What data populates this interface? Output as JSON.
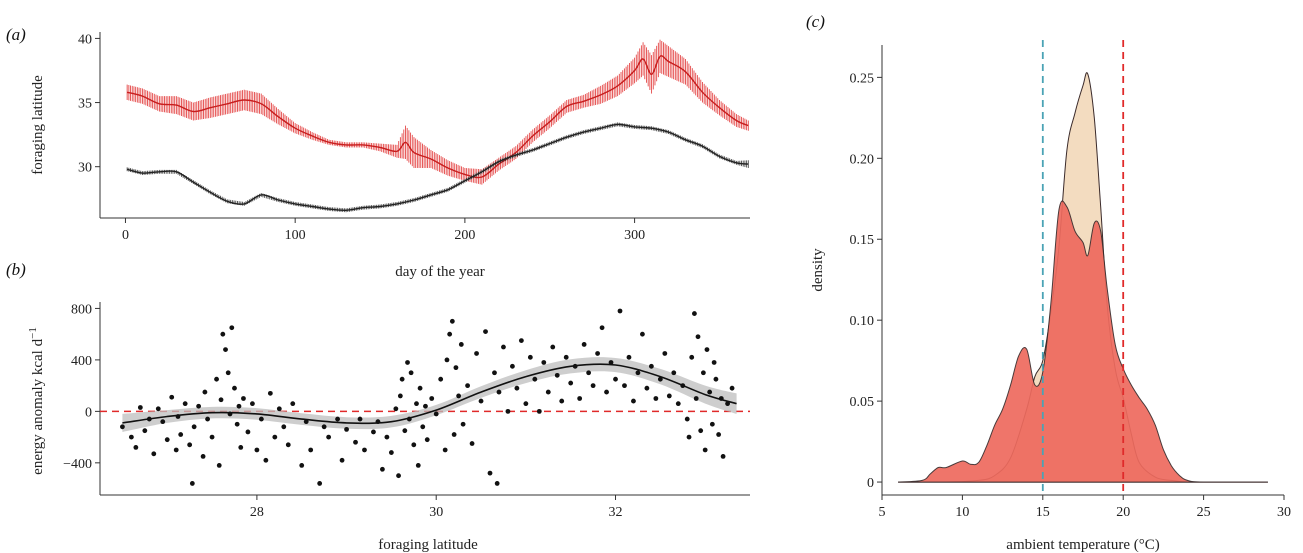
{
  "chart_data": [
    {
      "panel_label": "(a)",
      "type": "line",
      "xlabel": "day of the year",
      "ylabel": "foraging latitude",
      "xlim": [
        -15,
        368
      ],
      "ylim": [
        26,
        40.5
      ],
      "xticks": [
        0,
        100,
        200,
        300
      ],
      "yticks": [
        30,
        35,
        40
      ],
      "error_bars": true,
      "series": [
        {
          "color": "#e02a2a",
          "x": [
            1,
            10,
            20,
            30,
            40,
            50,
            60,
            70,
            80,
            90,
            100,
            110,
            120,
            130,
            140,
            150,
            160,
            165,
            170,
            180,
            190,
            200,
            210,
            220,
            230,
            240,
            250,
            260,
            270,
            280,
            290,
            300,
            305,
            310,
            315,
            320,
            330,
            340,
            350,
            360,
            367
          ],
          "y": [
            35.8,
            35.5,
            34.9,
            34.8,
            34.3,
            34.6,
            34.9,
            35.2,
            34.9,
            33.9,
            33.0,
            32.4,
            31.9,
            31.7,
            31.7,
            31.5,
            31.2,
            31.9,
            31.1,
            30.6,
            29.9,
            29.4,
            29.2,
            30.2,
            31.1,
            32.4,
            33.5,
            34.7,
            35.1,
            35.6,
            36.3,
            37.5,
            38.4,
            37.2,
            38.6,
            38.2,
            37.4,
            35.8,
            34.6,
            33.6,
            33.2
          ],
          "err": [
            0.6,
            0.6,
            0.6,
            0.7,
            0.7,
            0.8,
            0.8,
            0.8,
            0.8,
            0.6,
            0.4,
            0.3,
            0.2,
            0.2,
            0.2,
            0.3,
            0.5,
            1.3,
            1.2,
            0.7,
            0.6,
            0.5,
            0.6,
            0.5,
            0.5,
            0.5,
            0.5,
            0.5,
            0.5,
            0.7,
            0.8,
            1.0,
            1.3,
            1.5,
            1.3,
            1.2,
            1.0,
            0.8,
            0.6,
            0.5,
            0.4
          ]
        },
        {
          "color": "#2b2b2b",
          "x": [
            1,
            10,
            20,
            30,
            40,
            50,
            60,
            70,
            80,
            90,
            100,
            110,
            120,
            130,
            140,
            150,
            160,
            170,
            180,
            190,
            200,
            210,
            220,
            230,
            240,
            250,
            260,
            270,
            280,
            290,
            300,
            310,
            320,
            330,
            340,
            350,
            360,
            367
          ],
          "y": [
            29.8,
            29.5,
            29.6,
            29.6,
            28.8,
            28.0,
            27.3,
            27.1,
            27.8,
            27.4,
            27.1,
            26.9,
            26.7,
            26.6,
            26.8,
            26.9,
            27.1,
            27.4,
            27.8,
            28.2,
            28.9,
            29.6,
            30.4,
            30.9,
            31.3,
            31.8,
            32.3,
            32.7,
            33.0,
            33.3,
            33.1,
            33.0,
            32.7,
            32.1,
            31.6,
            30.8,
            30.3,
            30.2
          ],
          "err": [
            0.15,
            0.15,
            0.15,
            0.15,
            0.15,
            0.15,
            0.15,
            0.15,
            0.15,
            0.15,
            0.15,
            0.15,
            0.15,
            0.15,
            0.15,
            0.15,
            0.15,
            0.15,
            0.15,
            0.15,
            0.15,
            0.15,
            0.15,
            0.15,
            0.15,
            0.15,
            0.15,
            0.15,
            0.15,
            0.15,
            0.15,
            0.15,
            0.15,
            0.15,
            0.15,
            0.15,
            0.15,
            0.3
          ]
        }
      ]
    },
    {
      "panel_label": "(b)",
      "type": "scatter",
      "xlabel": "foraging latitude",
      "ylabel": "energy anomaly kcal d",
      "ylabel_superscript": "−1",
      "xlim": [
        26.25,
        33.5
      ],
      "ylim": [
        -650,
        850
      ],
      "xticks": [
        28,
        30,
        32
      ],
      "yticks": [
        -400,
        0,
        400,
        800
      ],
      "yticklabels": [
        "−400",
        "0",
        "400",
        "800"
      ],
      "reference_line": {
        "y": 0,
        "color": "#e02a2a",
        "style": "dashed"
      },
      "smooth_fit": {
        "x": [
          26.5,
          27.0,
          27.5,
          28.0,
          28.5,
          29.0,
          29.5,
          30.0,
          30.5,
          31.0,
          31.5,
          32.0,
          32.5,
          33.0,
          33.35
        ],
        "y": [
          -90,
          -40,
          -10,
          -20,
          -60,
          -90,
          -80,
          10,
          150,
          270,
          350,
          360,
          270,
          130,
          60
        ],
        "ci": [
          70,
          50,
          45,
          45,
          45,
          45,
          45,
          40,
          45,
          50,
          55,
          55,
          60,
          70,
          80
        ]
      },
      "points": [
        [
          26.5,
          -120
        ],
        [
          26.6,
          -200
        ],
        [
          26.65,
          -280
        ],
        [
          26.7,
          30
        ],
        [
          26.75,
          -150
        ],
        [
          26.8,
          -60
        ],
        [
          26.85,
          -330
        ],
        [
          26.9,
          20
        ],
        [
          26.95,
          -80
        ],
        [
          27.0,
          -220
        ],
        [
          27.05,
          110
        ],
        [
          27.1,
          -300
        ],
        [
          27.12,
          -40
        ],
        [
          27.15,
          -180
        ],
        [
          27.2,
          60
        ],
        [
          27.25,
          -260
        ],
        [
          27.28,
          -560
        ],
        [
          27.3,
          -120
        ],
        [
          27.35,
          40
        ],
        [
          27.4,
          -350
        ],
        [
          27.42,
          150
        ],
        [
          27.45,
          -60
        ],
        [
          27.5,
          -200
        ],
        [
          27.55,
          250
        ],
        [
          27.58,
          -420
        ],
        [
          27.6,
          90
        ],
        [
          27.62,
          600
        ],
        [
          27.65,
          480
        ],
        [
          27.68,
          300
        ],
        [
          27.7,
          -20
        ],
        [
          27.72,
          650
        ],
        [
          27.75,
          180
        ],
        [
          27.78,
          -100
        ],
        [
          27.8,
          40
        ],
        [
          27.82,
          -280
        ],
        [
          27.85,
          100
        ],
        [
          27.9,
          -160
        ],
        [
          27.95,
          60
        ],
        [
          28.0,
          -300
        ],
        [
          28.05,
          -60
        ],
        [
          28.1,
          -380
        ],
        [
          28.15,
          140
        ],
        [
          28.2,
          -200
        ],
        [
          28.25,
          20
        ],
        [
          28.3,
          -120
        ],
        [
          28.35,
          -260
        ],
        [
          28.4,
          60
        ],
        [
          28.5,
          -420
        ],
        [
          28.55,
          -80
        ],
        [
          28.6,
          -300
        ],
        [
          28.7,
          -560
        ],
        [
          28.75,
          -120
        ],
        [
          28.8,
          -200
        ],
        [
          28.9,
          -60
        ],
        [
          28.95,
          -380
        ],
        [
          29.0,
          -140
        ],
        [
          29.1,
          -240
        ],
        [
          29.15,
          -60
        ],
        [
          29.2,
          -300
        ],
        [
          29.3,
          -160
        ],
        [
          29.35,
          -80
        ],
        [
          29.4,
          -450
        ],
        [
          29.45,
          -200
        ],
        [
          29.5,
          -320
        ],
        [
          29.55,
          20
        ],
        [
          29.58,
          -500
        ],
        [
          29.6,
          120
        ],
        [
          29.62,
          250
        ],
        [
          29.65,
          -150
        ],
        [
          29.68,
          380
        ],
        [
          29.7,
          -60
        ],
        [
          29.72,
          300
        ],
        [
          29.75,
          -260
        ],
        [
          29.78,
          60
        ],
        [
          29.8,
          -420
        ],
        [
          29.82,
          180
        ],
        [
          29.85,
          -120
        ],
        [
          29.88,
          40
        ],
        [
          29.9,
          -220
        ],
        [
          29.95,
          100
        ],
        [
          30.0,
          -20
        ],
        [
          30.05,
          250
        ],
        [
          30.1,
          -300
        ],
        [
          30.12,
          400
        ],
        [
          30.15,
          600
        ],
        [
          30.18,
          700
        ],
        [
          30.2,
          -180
        ],
        [
          30.22,
          340
        ],
        [
          30.25,
          120
        ],
        [
          30.28,
          520
        ],
        [
          30.3,
          -100
        ],
        [
          30.35,
          200
        ],
        [
          30.4,
          -250
        ],
        [
          30.45,
          450
        ],
        [
          30.5,
          80
        ],
        [
          30.55,
          620
        ],
        [
          30.6,
          -480
        ],
        [
          30.65,
          300
        ],
        [
          30.68,
          -560
        ],
        [
          30.7,
          150
        ],
        [
          30.75,
          500
        ],
        [
          30.8,
          0
        ],
        [
          30.85,
          350
        ],
        [
          30.9,
          180
        ],
        [
          30.95,
          550
        ],
        [
          31.0,
          60
        ],
        [
          31.05,
          420
        ],
        [
          31.1,
          250
        ],
        [
          31.15,
          0
        ],
        [
          31.2,
          380
        ],
        [
          31.25,
          150
        ],
        [
          31.3,
          500
        ],
        [
          31.35,
          280
        ],
        [
          31.4,
          80
        ],
        [
          31.45,
          420
        ],
        [
          31.5,
          220
        ],
        [
          31.55,
          350
        ],
        [
          31.6,
          100
        ],
        [
          31.65,
          520
        ],
        [
          31.7,
          300
        ],
        [
          31.75,
          200
        ],
        [
          31.8,
          450
        ],
        [
          31.85,
          650
        ],
        [
          31.9,
          150
        ],
        [
          31.95,
          380
        ],
        [
          32.0,
          250
        ],
        [
          32.05,
          780
        ],
        [
          32.1,
          200
        ],
        [
          32.15,
          420
        ],
        [
          32.2,
          80
        ],
        [
          32.25,
          300
        ],
        [
          32.3,
          600
        ],
        [
          32.35,
          180
        ],
        [
          32.4,
          350
        ],
        [
          32.45,
          100
        ],
        [
          32.5,
          250
        ],
        [
          32.55,
          450
        ],
        [
          32.6,
          120
        ],
        [
          32.65,
          300
        ],
        [
          32.7,
          60
        ],
        [
          32.75,
          200
        ],
        [
          32.8,
          -60
        ],
        [
          32.82,
          -200
        ],
        [
          32.85,
          420
        ],
        [
          32.88,
          760
        ],
        [
          32.9,
          100
        ],
        [
          32.92,
          580
        ],
        [
          32.95,
          -150
        ],
        [
          32.98,
          300
        ],
        [
          33.0,
          -300
        ],
        [
          33.02,
          480
        ],
        [
          33.05,
          150
        ],
        [
          33.08,
          -100
        ],
        [
          33.1,
          380
        ],
        [
          33.12,
          250
        ],
        [
          33.15,
          -180
        ],
        [
          33.18,
          100
        ],
        [
          33.2,
          -350
        ],
        [
          33.25,
          60
        ],
        [
          33.3,
          180
        ]
      ]
    },
    {
      "panel_label": "(c)",
      "type": "area",
      "xlabel": "ambient temperature (°C)",
      "ylabel": "density",
      "xlim": [
        5,
        30
      ],
      "ylim": [
        -0.008,
        0.27
      ],
      "xticks": [
        5,
        10,
        15,
        20,
        25,
        30
      ],
      "yticks": [
        0,
        0.05,
        0.1,
        0.15,
        0.2,
        0.25
      ],
      "yticklabels": [
        "0",
        "0.05",
        "0.10",
        "0.15",
        "0.20",
        "0.25"
      ],
      "reference_lines": [
        {
          "x": 15,
          "color": "#4aa3b5",
          "style": "dashed"
        },
        {
          "x": 20,
          "color": "#e02a2a",
          "style": "dashed"
        }
      ],
      "series": [
        {
          "fill": "#f3dcc0",
          "x": [
            6,
            9,
            11,
            12,
            13,
            14,
            14.5,
            15,
            15.5,
            16,
            16.5,
            17,
            17.5,
            17.8,
            18.2,
            18.6,
            19,
            19.5,
            20,
            20.5,
            21,
            22,
            23,
            24,
            26,
            29
          ],
          "y": [
            0,
            0,
            0.001,
            0.004,
            0.015,
            0.045,
            0.065,
            0.075,
            0.105,
            0.145,
            0.205,
            0.228,
            0.245,
            0.252,
            0.225,
            0.17,
            0.11,
            0.07,
            0.052,
            0.03,
            0.012,
            0.003,
            0.001,
            0,
            0,
            0
          ]
        },
        {
          "fill": "#ee6a5e",
          "x": [
            6,
            7.5,
            8,
            8.5,
            9,
            10,
            10.5,
            11,
            11.5,
            12,
            12.5,
            13,
            13.5,
            14,
            14.5,
            15,
            15.5,
            16,
            16.5,
            17,
            17.5,
            17.8,
            18.2,
            18.6,
            19,
            19.5,
            20,
            20.5,
            21,
            21.5,
            22,
            22.5,
            23,
            23.5,
            24,
            25,
            29
          ],
          "y": [
            0,
            0.001,
            0.005,
            0.009,
            0.009,
            0.013,
            0.011,
            0.012,
            0.022,
            0.035,
            0.045,
            0.06,
            0.078,
            0.082,
            0.06,
            0.068,
            0.11,
            0.168,
            0.17,
            0.155,
            0.148,
            0.14,
            0.16,
            0.155,
            0.12,
            0.085,
            0.07,
            0.06,
            0.052,
            0.045,
            0.035,
            0.02,
            0.01,
            0.004,
            0.001,
            0,
            0
          ]
        }
      ]
    }
  ]
}
